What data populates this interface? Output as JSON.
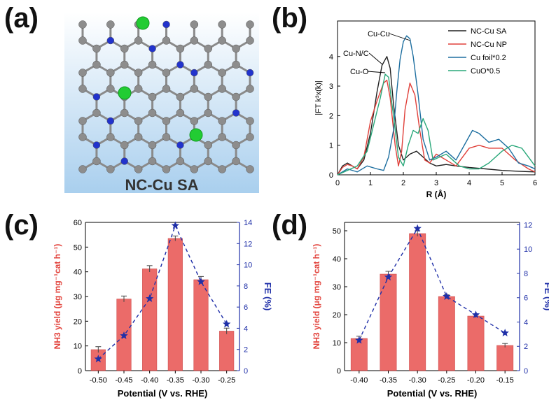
{
  "panels": {
    "a": {
      "label": "(a)",
      "caption": "NC-Cu SA"
    },
    "b": {
      "label": "(b)"
    },
    "c": {
      "label": "(c)"
    },
    "d": {
      "label": "(d)"
    }
  },
  "colors": {
    "bar": "#e8524f",
    "fe": "#1f2fa8",
    "ylabel_left": "#e2423b",
    "ylabel_right": "#1f2fa8",
    "exafs": {
      "NC-Cu SA": "#222222",
      "NC-Cu NP": "#e0403a",
      "Cu foil*0.2": "#1e6fa0",
      "CuO*0.5": "#2aa87a"
    }
  },
  "chart_data": [
    {
      "id": "b",
      "type": "line",
      "xlabel": "R (Å)",
      "ylabel": "|FT k³x(k)|",
      "xlim": [
        0,
        6
      ],
      "ylim": [
        0,
        5.2
      ],
      "xticks": [
        "0",
        "1",
        "2",
        "3",
        "4",
        "5",
        "6"
      ],
      "yticks": [
        "0",
        "1",
        "2",
        "3",
        "4"
      ],
      "legend_position": "top-right",
      "annotations": [
        "Cu-Cu",
        "Cu-N/C",
        "Cu-O"
      ],
      "series": [
        {
          "name": "NC-Cu SA",
          "x": [
            0,
            0.15,
            0.3,
            0.45,
            0.6,
            0.8,
            1.0,
            1.2,
            1.35,
            1.5,
            1.6,
            1.7,
            1.85,
            2.0,
            2.2,
            2.4,
            2.6,
            2.8,
            3.0,
            3.3,
            3.6,
            4.0,
            4.5,
            5.0,
            5.5,
            6.0
          ],
          "y": [
            0,
            0.3,
            0.4,
            0.3,
            0.2,
            0.5,
            1.4,
            2.8,
            3.7,
            4.0,
            3.6,
            2.4,
            1.0,
            0.5,
            0.7,
            0.8,
            0.6,
            0.4,
            0.3,
            0.35,
            0.3,
            0.25,
            0.2,
            0.15,
            0.12,
            0.1
          ]
        },
        {
          "name": "NC-Cu NP",
          "x": [
            0,
            0.15,
            0.3,
            0.45,
            0.6,
            0.8,
            1.0,
            1.2,
            1.4,
            1.5,
            1.6,
            1.75,
            1.85,
            1.95,
            2.05,
            2.2,
            2.35,
            2.5,
            2.65,
            2.8,
            3.0,
            3.3,
            3.6,
            4.0,
            4.3,
            4.6,
            5.0,
            5.4,
            5.8,
            6.0
          ],
          "y": [
            0,
            0.25,
            0.35,
            0.3,
            0.2,
            0.6,
            1.8,
            2.5,
            3.1,
            3.2,
            2.6,
            1.0,
            0.3,
            0.8,
            2.2,
            3.1,
            2.7,
            1.5,
            0.5,
            0.4,
            0.7,
            0.5,
            0.3,
            0.9,
            1.0,
            0.9,
            0.9,
            0.5,
            0.2,
            0.1
          ]
        },
        {
          "name": "Cu foil*0.2",
          "x": [
            0,
            0.3,
            0.6,
            0.9,
            1.2,
            1.4,
            1.55,
            1.7,
            1.8,
            1.9,
            2.0,
            2.1,
            2.2,
            2.3,
            2.45,
            2.6,
            2.8,
            3.0,
            3.3,
            3.6,
            3.9,
            4.1,
            4.3,
            4.6,
            4.9,
            5.2,
            5.5,
            5.8,
            6.0
          ],
          "y": [
            0,
            0.2,
            0.1,
            0.3,
            0.2,
            0.15,
            0.6,
            1.5,
            2.8,
            3.9,
            4.5,
            4.7,
            4.6,
            4.0,
            2.7,
            1.2,
            0.5,
            0.6,
            0.8,
            0.5,
            1.1,
            1.5,
            1.4,
            1.1,
            1.2,
            0.9,
            0.4,
            0.3,
            0.2
          ]
        },
        {
          "name": "CuO*0.5",
          "x": [
            0,
            0.3,
            0.6,
            0.9,
            1.1,
            1.3,
            1.45,
            1.55,
            1.7,
            1.85,
            2.0,
            2.15,
            2.3,
            2.45,
            2.6,
            2.75,
            2.9,
            3.1,
            3.3,
            3.5,
            3.7,
            4.0,
            4.3,
            4.6,
            5.0,
            5.3,
            5.6,
            5.8,
            6.0
          ],
          "y": [
            0,
            0.15,
            0.3,
            0.8,
            1.7,
            2.6,
            3.4,
            3.3,
            2.0,
            0.6,
            0.3,
            1.0,
            1.5,
            1.4,
            1.9,
            1.5,
            0.5,
            0.6,
            0.7,
            0.5,
            0.3,
            0.2,
            0.2,
            0.4,
            0.8,
            1.0,
            0.9,
            0.6,
            0.3
          ]
        }
      ]
    },
    {
      "id": "c",
      "type": "bar",
      "categories": [
        "-0.50",
        "-0.45",
        "-0.40",
        "-0.35",
        "-0.30",
        "-0.25"
      ],
      "values": [
        8.5,
        29,
        41.2,
        53.5,
        36.8,
        16
      ],
      "errors": [
        1.2,
        1.2,
        1.3,
        1.0,
        1.3,
        1.2
      ],
      "fe": [
        1.1,
        3.3,
        6.8,
        13.7,
        8.4,
        4.4
      ],
      "xlabel": "Potential (V vs. RHE)",
      "ylabel": "NH3 yield (μg mg⁻¹cat h⁻¹)",
      "y2label": "FE (%)",
      "ylim": [
        0,
        60
      ],
      "y2lim": [
        0,
        14
      ],
      "yticks": [
        "0",
        "10",
        "20",
        "30",
        "40",
        "50",
        "60"
      ],
      "y2ticks": [
        "0",
        "2",
        "4",
        "6",
        "8",
        "10",
        "12",
        "14"
      ]
    },
    {
      "id": "d",
      "type": "bar",
      "categories": [
        "-0.40",
        "-0.35",
        "-0.30",
        "-0.25",
        "-0.20",
        "-0.15"
      ],
      "values": [
        11.5,
        34.5,
        49,
        26.5,
        19.5,
        9
      ],
      "errors": [
        0.8,
        1.0,
        1.0,
        0.6,
        0.5,
        0.7
      ],
      "fe": [
        2.5,
        7.7,
        11.7,
        6.1,
        4.6,
        3.1
      ],
      "xlabel": "Potential (V vs. RHE)",
      "ylabel": "NH3 yield (μg mg⁻¹cat h⁻¹)",
      "y2label": "FE (%)",
      "ylim": [
        0,
        53
      ],
      "y2lim": [
        0,
        12.2
      ],
      "yticks": [
        "0",
        "10",
        "20",
        "30",
        "40",
        "50"
      ],
      "y2ticks": [
        "0",
        "2",
        "4",
        "6",
        "8",
        "10",
        "12"
      ]
    }
  ]
}
